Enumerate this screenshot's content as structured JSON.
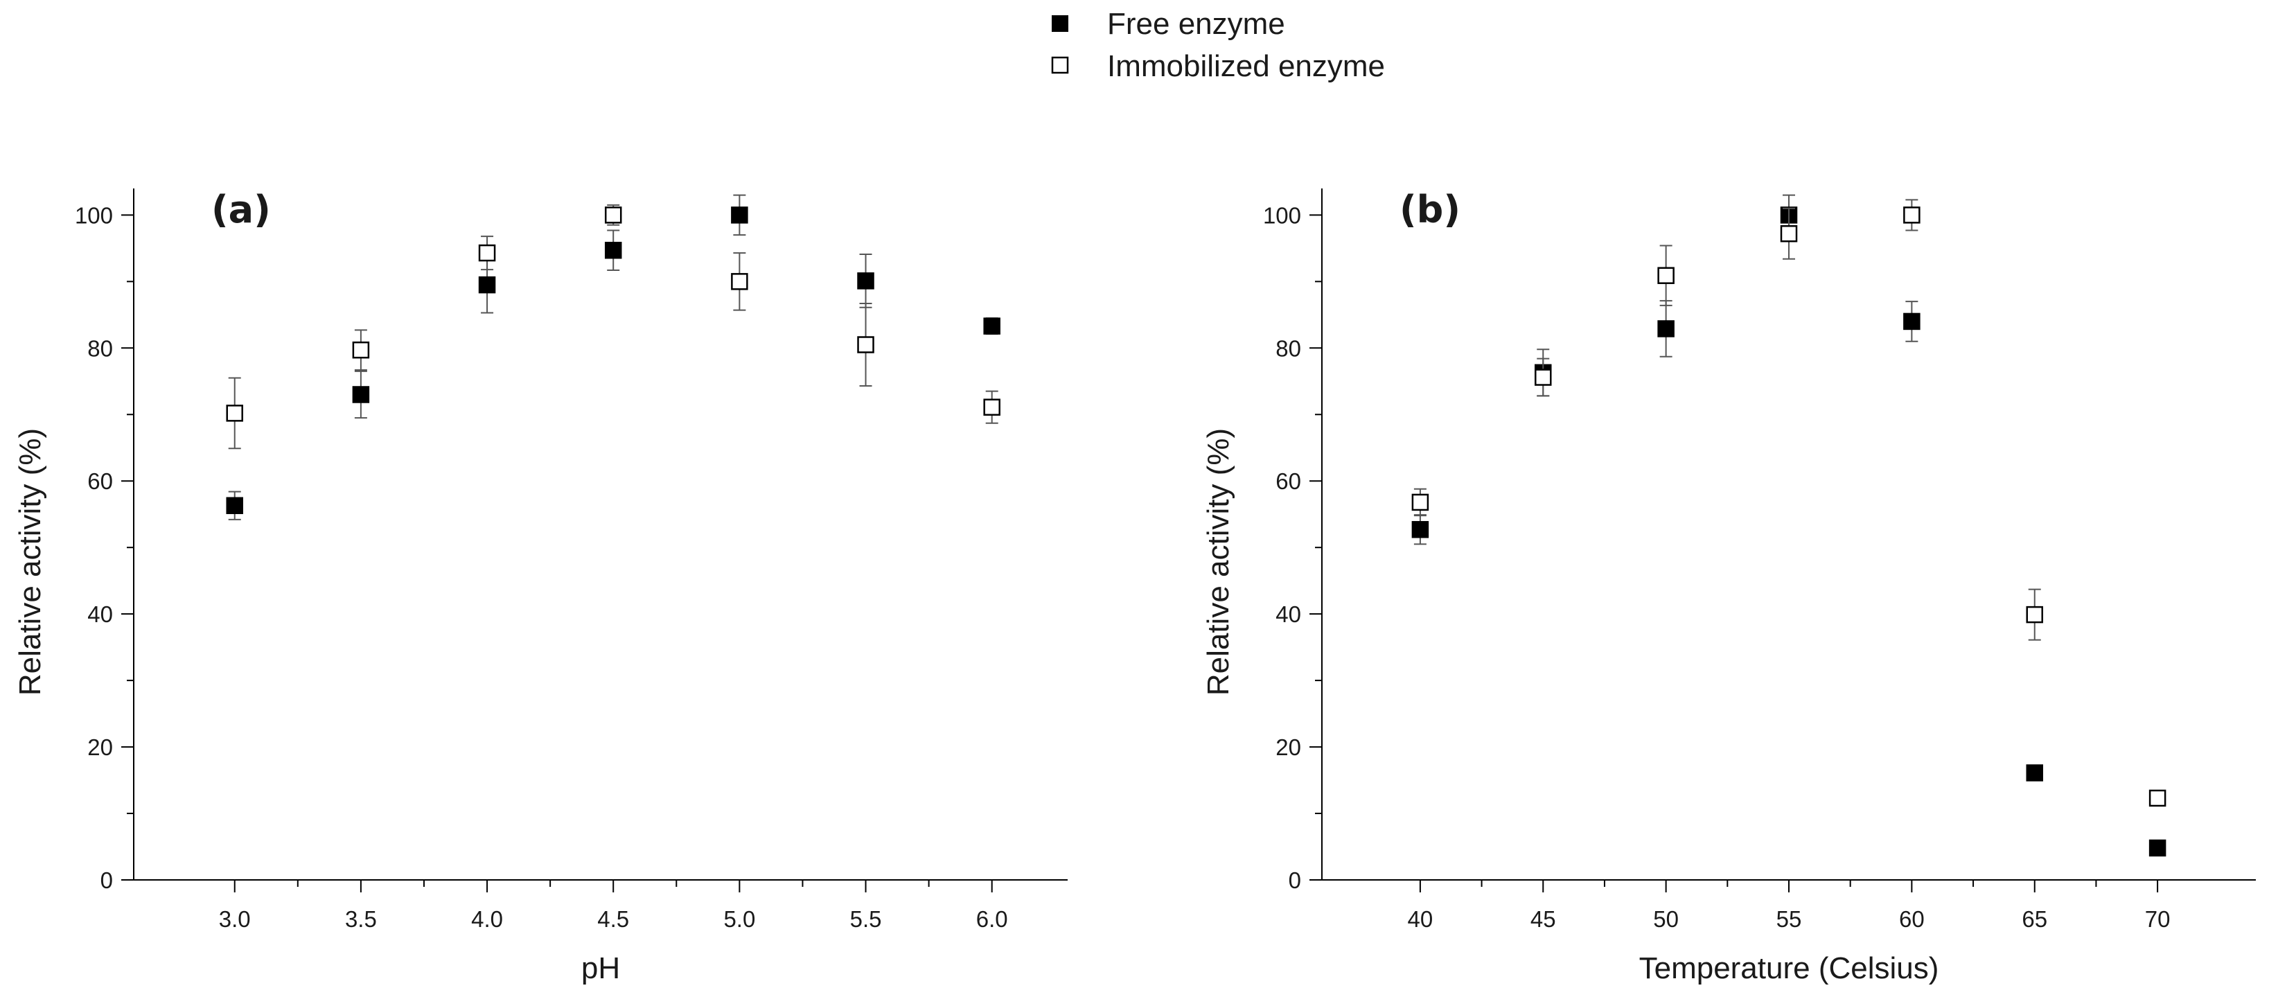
{
  "legend": [
    {
      "label": "Free enzyme",
      "marker": "filled-square",
      "color": "#000000"
    },
    {
      "label": "Immobilized enzyme",
      "marker": "open-square",
      "color": "#000000"
    }
  ],
  "chart_data": [
    {
      "type": "scatter",
      "panel_label": "(a)",
      "xlabel": "pH",
      "ylabel": "Relative activity (%)",
      "xlim": [
        2.6,
        6.3
      ],
      "ylim": [
        0,
        104
      ],
      "xticks": [
        3.0,
        3.5,
        4.0,
        4.5,
        5.0,
        5.5,
        6.0
      ],
      "xtick_labels": [
        "3.0",
        "3.5",
        "4.0",
        "4.5",
        "5.0",
        "5.5",
        "6.0"
      ],
      "yticks": [
        0,
        20,
        40,
        60,
        80,
        100
      ],
      "ytick_labels": [
        "0",
        "20",
        "40",
        "60",
        "80",
        "100"
      ],
      "grid": false,
      "series": [
        {
          "name": "Free enzyme",
          "marker": "filled-square",
          "x": [
            3.0,
            3.5,
            4.0,
            4.5,
            5.0,
            5.5,
            6.0
          ],
          "y": [
            56.3,
            73.0,
            89.5,
            94.7,
            100.0,
            90.1,
            83.3
          ],
          "err": [
            2.1,
            3.5,
            4.2,
            3.0,
            3.0,
            4.0,
            1.2
          ]
        },
        {
          "name": "Immobilized enzyme",
          "marker": "open-square",
          "x": [
            3.0,
            3.5,
            4.0,
            4.5,
            5.0,
            5.5,
            6.0
          ],
          "y": [
            70.2,
            79.7,
            94.3,
            100.0,
            90.0,
            80.5,
            71.1
          ],
          "err": [
            5.3,
            3.0,
            2.5,
            1.5,
            4.3,
            6.2,
            2.4
          ]
        }
      ]
    },
    {
      "type": "scatter",
      "panel_label": "(b)",
      "xlabel": "Temperature (Celsius)",
      "ylabel": "Relative activity (%)",
      "xlim": [
        36,
        74
      ],
      "ylim": [
        0,
        104
      ],
      "xticks": [
        40,
        45,
        50,
        55,
        60,
        65,
        70
      ],
      "xtick_labels": [
        "40",
        "45",
        "50",
        "55",
        "60",
        "65",
        "70"
      ],
      "yticks": [
        0,
        20,
        40,
        60,
        80,
        100
      ],
      "ytick_labels": [
        "0",
        "20",
        "40",
        "60",
        "80",
        "100"
      ],
      "grid": false,
      "series": [
        {
          "name": "Free enzyme",
          "marker": "filled-square",
          "x": [
            40,
            45,
            50,
            55,
            60,
            65,
            70
          ],
          "y": [
            52.7,
            76.3,
            82.9,
            100.0,
            84.0,
            16.1,
            4.8
          ],
          "err": [
            2.2,
            3.5,
            4.2,
            3.0,
            3.0,
            0,
            0
          ]
        },
        {
          "name": "Immobilized enzyme",
          "marker": "open-square",
          "x": [
            40,
            45,
            50,
            55,
            60,
            65,
            70
          ],
          "y": [
            56.8,
            75.6,
            90.9,
            97.2,
            100.0,
            39.9,
            12.3
          ],
          "err": [
            2.0,
            2.8,
            4.5,
            3.8,
            2.3,
            3.8,
            0
          ]
        }
      ]
    }
  ]
}
